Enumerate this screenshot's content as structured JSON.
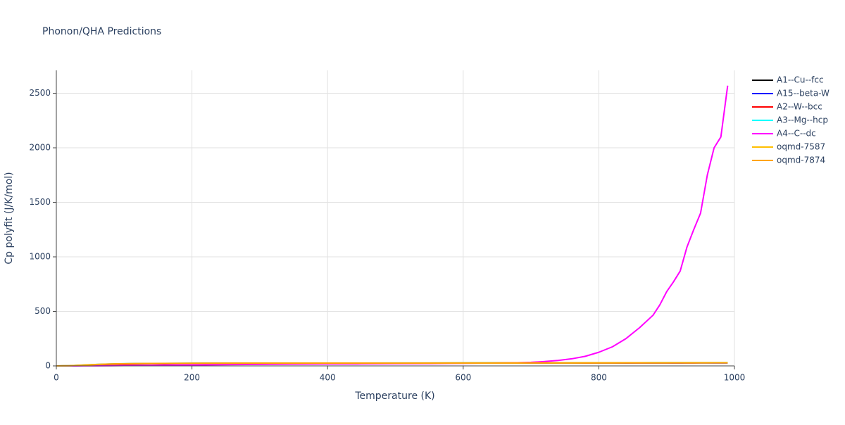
{
  "chart_data": {
    "type": "line",
    "title": "Phonon/QHA Predictions",
    "x_label": "Temperature (K)",
    "y_label": "Cp polyfit (J/K/mol)",
    "x": [
      0,
      20,
      40,
      60,
      80,
      100,
      140,
      180,
      220,
      260,
      300,
      350,
      400,
      450,
      500,
      550,
      600,
      640,
      680,
      700,
      720,
      740,
      760,
      780,
      800,
      820,
      840,
      860,
      880,
      890,
      900,
      910,
      920,
      930,
      940,
      950,
      960,
      970,
      980,
      990
    ],
    "series": [
      {
        "name": "A1--Cu--fcc",
        "color": "#000000",
        "values": [
          0,
          1,
          6,
          12,
          16,
          19,
          21.5,
          23,
          23.8,
          24.2,
          24.5,
          24.8,
          25.1,
          25.4,
          25.7,
          26,
          26.3,
          26.5,
          26.8,
          26.9,
          27,
          27.1,
          27.2,
          27.4,
          27.5,
          27.6,
          27.8,
          27.9,
          28,
          28.1,
          28.1,
          28.2,
          28.2,
          28.3,
          28.3,
          28.4,
          28.4,
          28.5,
          28.5,
          28.6
        ]
      },
      {
        "name": "A15--beta-W",
        "color": "#0000ff",
        "values": [
          0,
          0.6,
          3.5,
          8.5,
          12.5,
          15.5,
          19.3,
          21.7,
          23,
          23.6,
          24.1,
          24.5,
          24.9,
          25.2,
          25.5,
          25.8,
          26.1,
          26.3,
          26.5,
          26.6,
          26.7,
          26.8,
          26.9,
          27.1,
          27.2,
          27.3,
          27.4,
          27.5,
          27.6,
          27.7,
          27.7,
          27.8,
          27.8,
          27.9,
          27.9,
          28,
          28,
          28.1,
          28.1,
          28.2
        ]
      },
      {
        "name": "A2--W--bcc",
        "color": "#ff0000",
        "values": [
          0,
          0.5,
          3,
          8,
          12,
          15,
          19,
          21.5,
          22.8,
          23.5,
          24,
          24.4,
          24.8,
          25.1,
          25.4,
          25.7,
          26,
          26.2,
          26.4,
          26.5,
          26.6,
          26.7,
          26.8,
          27,
          27.1,
          27.2,
          27.3,
          27.4,
          27.5,
          27.6,
          27.6,
          27.7,
          27.7,
          27.8,
          27.8,
          27.9,
          27.9,
          28,
          28,
          28.1
        ]
      },
      {
        "name": "A3--Mg--hcp",
        "color": "#00ffff",
        "values": [
          0,
          1.5,
          8,
          14,
          17.5,
          20,
          22,
          23.4,
          24.1,
          24.5,
          24.9,
          25.3,
          25.7,
          26.1,
          26.5,
          26.9,
          27.3,
          27.6,
          27.9,
          28.1,
          28.2,
          28.4,
          28.5,
          28.7,
          28.9,
          29,
          29.2,
          29.3,
          29.5,
          29.6,
          29.6,
          29.7,
          29.8,
          29.8,
          29.9,
          30,
          30,
          30.1,
          30.2,
          30.2
        ]
      },
      {
        "name": "A4--C--dc",
        "color": "#ff00ff",
        "values": [
          0,
          0.1,
          0.5,
          1,
          2,
          3,
          5,
          8,
          10,
          12,
          14,
          16,
          18,
          19,
          21,
          22,
          24,
          26,
          29,
          33,
          40,
          50,
          65,
          88,
          125,
          175,
          250,
          350,
          465,
          560,
          680,
          770,
          870,
          1090,
          1250,
          1400,
          1750,
          2000,
          2100,
          2570
        ]
      },
      {
        "name": "oqmd-7587",
        "color": "#ffbf00",
        "values": [
          0,
          1.2,
          7,
          13,
          17,
          19.6,
          21.8,
          23.2,
          24,
          24.4,
          24.7,
          25,
          25.3,
          25.6,
          25.9,
          26.2,
          26.5,
          26.7,
          27,
          27.1,
          27.2,
          27.3,
          27.4,
          27.6,
          27.7,
          27.8,
          28,
          28.1,
          28.2,
          28.3,
          28.3,
          28.4,
          28.4,
          28.5,
          28.5,
          28.6,
          28.6,
          28.7,
          28.7,
          28.8
        ]
      },
      {
        "name": "oqmd-7874",
        "color": "#ffa500",
        "values": [
          0,
          1.3,
          7.5,
          13.5,
          17.5,
          20,
          22.2,
          23.6,
          24.3,
          24.7,
          25,
          25.3,
          25.6,
          25.9,
          26.2,
          26.5,
          26.8,
          27,
          27.3,
          27.4,
          27.5,
          27.6,
          27.7,
          27.9,
          28,
          28.1,
          28.3,
          28.4,
          28.5,
          28.6,
          28.6,
          28.7,
          28.7,
          28.8,
          28.8,
          28.9,
          28.9,
          29,
          29,
          29.1
        ]
      }
    ],
    "xlim": [
      0,
      1000
    ],
    "xticks": [
      0,
      200,
      400,
      600,
      800,
      1000
    ],
    "ylim": [
      0,
      2710
    ],
    "yticks": [
      0,
      500,
      1000,
      1500,
      2000,
      2500
    ],
    "grid": true,
    "legend_position": "right"
  }
}
